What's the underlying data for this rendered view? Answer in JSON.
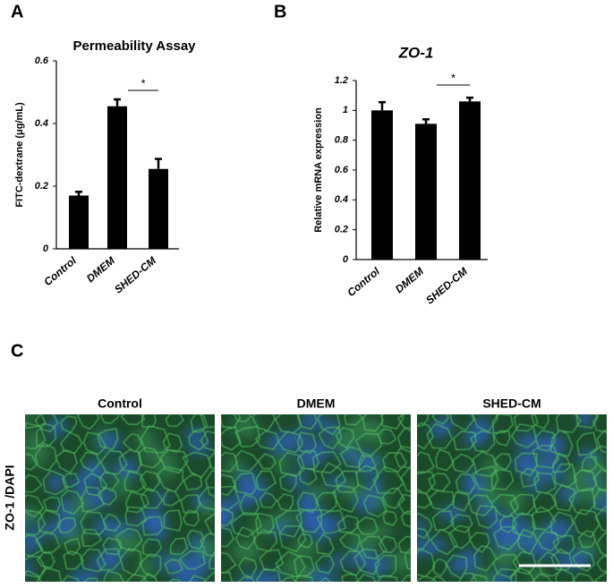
{
  "panel_labels": [
    "A",
    "B",
    "C"
  ],
  "chart_data": [
    {
      "type": "bar",
      "title": "Permeability Assay",
      "y_label": "FITC-dextrane (μg/mL)",
      "categories": [
        "Control",
        "DMEM",
        "SHED-CM"
      ],
      "values": [
        0.17,
        0.455,
        0.255
      ],
      "errors": [
        0.012,
        0.022,
        0.032
      ],
      "color": "#000000",
      "ylim": [
        0,
        0.6
      ],
      "yticks": [
        0,
        0.2,
        0.4,
        0.6
      ],
      "significance": [
        {
          "label": "*",
          "pair": [
            1,
            2
          ]
        }
      ]
    },
    {
      "type": "bar",
      "title": "ZO-1",
      "y_label": "Relative mRNA expression",
      "categories": [
        "Control",
        "DMEM",
        "SHED-CM"
      ],
      "values": [
        1.0,
        0.91,
        1.06
      ],
      "errors": [
        0.055,
        0.03,
        0.025
      ],
      "color": "#000000",
      "ylim": [
        0,
        1.2
      ],
      "yticks": [
        0,
        0.2,
        0.4,
        0.6,
        0.8,
        1,
        1.2
      ],
      "significance": [
        {
          "label": "*",
          "pair": [
            1,
            2
          ]
        }
      ]
    }
  ],
  "images": {
    "row_label": "ZO-1 /DAPI",
    "titles": [
      "Control",
      "DMEM",
      "SHED-CM"
    ]
  }
}
